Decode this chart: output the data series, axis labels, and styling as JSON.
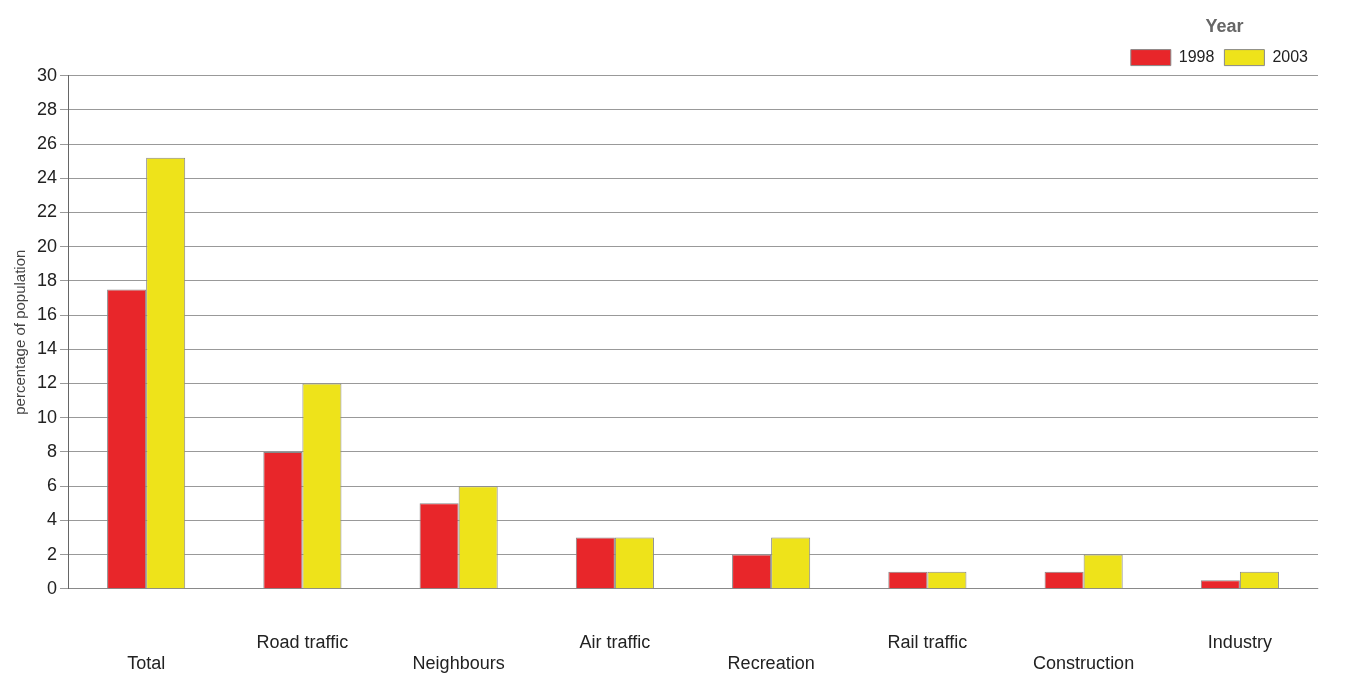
{
  "chart_data": {
    "type": "bar",
    "ylabel": "percentage of population",
    "legend_title": "Year",
    "categories": [
      "Total",
      "Road traffic",
      "Neighbours",
      "Air traffic",
      "Recreation",
      "Rail traffic",
      "Construction",
      "Industry"
    ],
    "series": [
      {
        "name": "1998",
        "color": "#e8262a",
        "values": [
          17.5,
          8,
          5,
          3,
          2,
          1,
          1,
          0.5
        ]
      },
      {
        "name": "2003",
        "color": "#eee31a",
        "values": [
          25.2,
          12,
          6,
          3,
          3,
          1,
          2,
          1
        ]
      }
    ],
    "ylim": [
      0,
      30
    ],
    "yticks": [
      0,
      2,
      4,
      6,
      8,
      10,
      12,
      14,
      16,
      18,
      20,
      22,
      24,
      26,
      28,
      30
    ],
    "grid": "y",
    "legend": "top right"
  }
}
